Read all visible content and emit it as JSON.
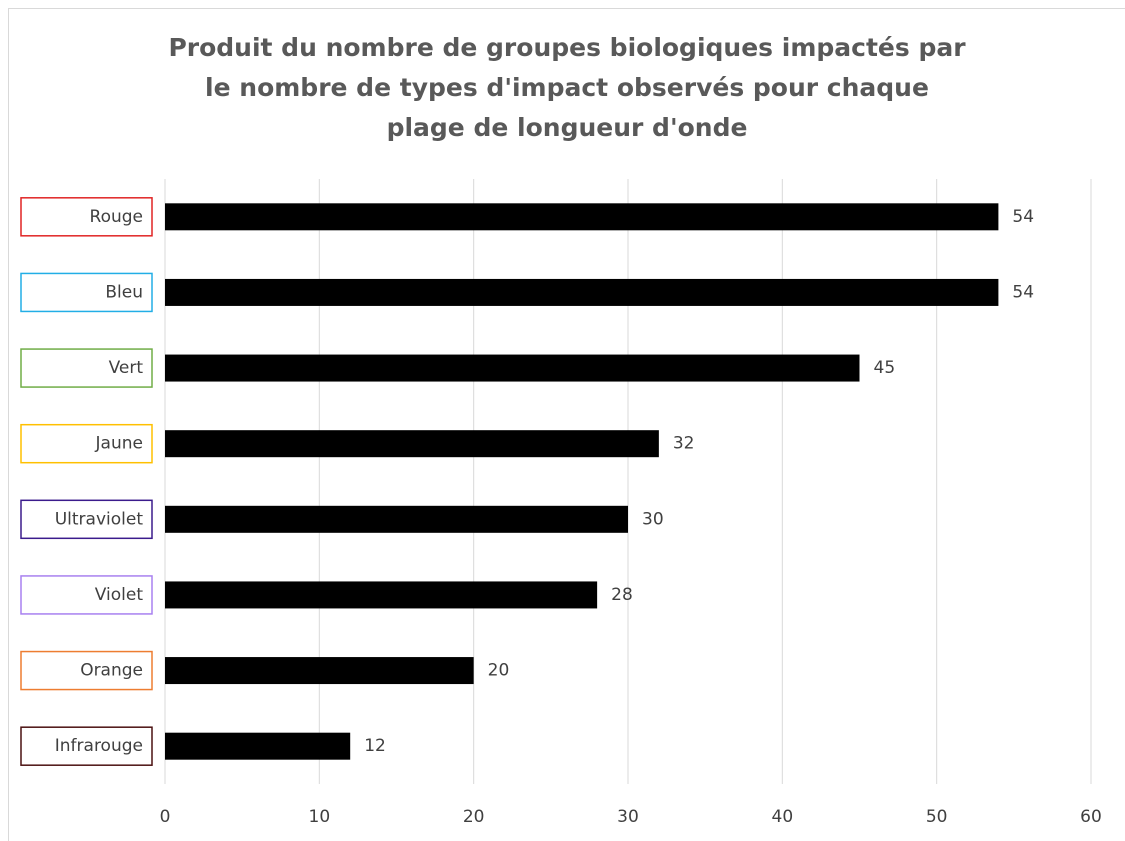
{
  "chart_data": {
    "type": "bar",
    "orientation": "horizontal",
    "title": "Produit du nombre de groupes biologiques impactés par le nombre de types d'impact observés pour chaque plage de longueur d'onde",
    "categories": [
      "Rouge",
      "Bleu",
      "Vert",
      "Jaune",
      "Ultraviolet",
      "Violet",
      "Orange",
      "Infrarouge"
    ],
    "category_colors": [
      "#e02424",
      "#22aee6",
      "#70ad47",
      "#ffc000",
      "#3b1b8c",
      "#a880f0",
      "#ed7d31",
      "#4a1010"
    ],
    "values": [
      54,
      54,
      45,
      32,
      30,
      28,
      20,
      12
    ],
    "color": "#000000",
    "xlim": [
      0,
      60
    ],
    "xticks": [
      0,
      10,
      20,
      30,
      40,
      50,
      60
    ],
    "grid": true
  }
}
